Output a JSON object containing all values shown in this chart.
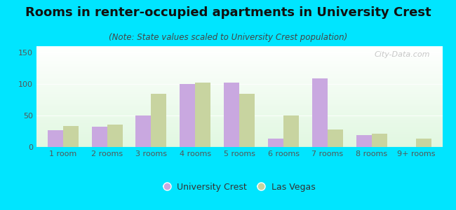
{
  "title": "Rooms in renter-occupied apartments in University Crest",
  "subtitle": "(Note: State values scaled to University Crest population)",
  "categories": [
    "1 room",
    "2 rooms",
    "3 rooms",
    "4 rooms",
    "5 rooms",
    "6 rooms",
    "7 rooms",
    "8 rooms",
    "9+ rooms"
  ],
  "university_crest": [
    27,
    32,
    50,
    100,
    102,
    13,
    109,
    19,
    0
  ],
  "las_vegas": [
    33,
    36,
    85,
    102,
    85,
    50,
    28,
    21,
    13
  ],
  "uc_color": "#c9a8e0",
  "lv_color": "#c8d4a0",
  "bg_color": "#00e5ff",
  "ylim": [
    0,
    160
  ],
  "yticks": [
    0,
    50,
    100,
    150
  ],
  "bar_width": 0.35,
  "title_fontsize": 13,
  "subtitle_fontsize": 8.5,
  "tick_fontsize": 8,
  "watermark": "City-Data.com"
}
